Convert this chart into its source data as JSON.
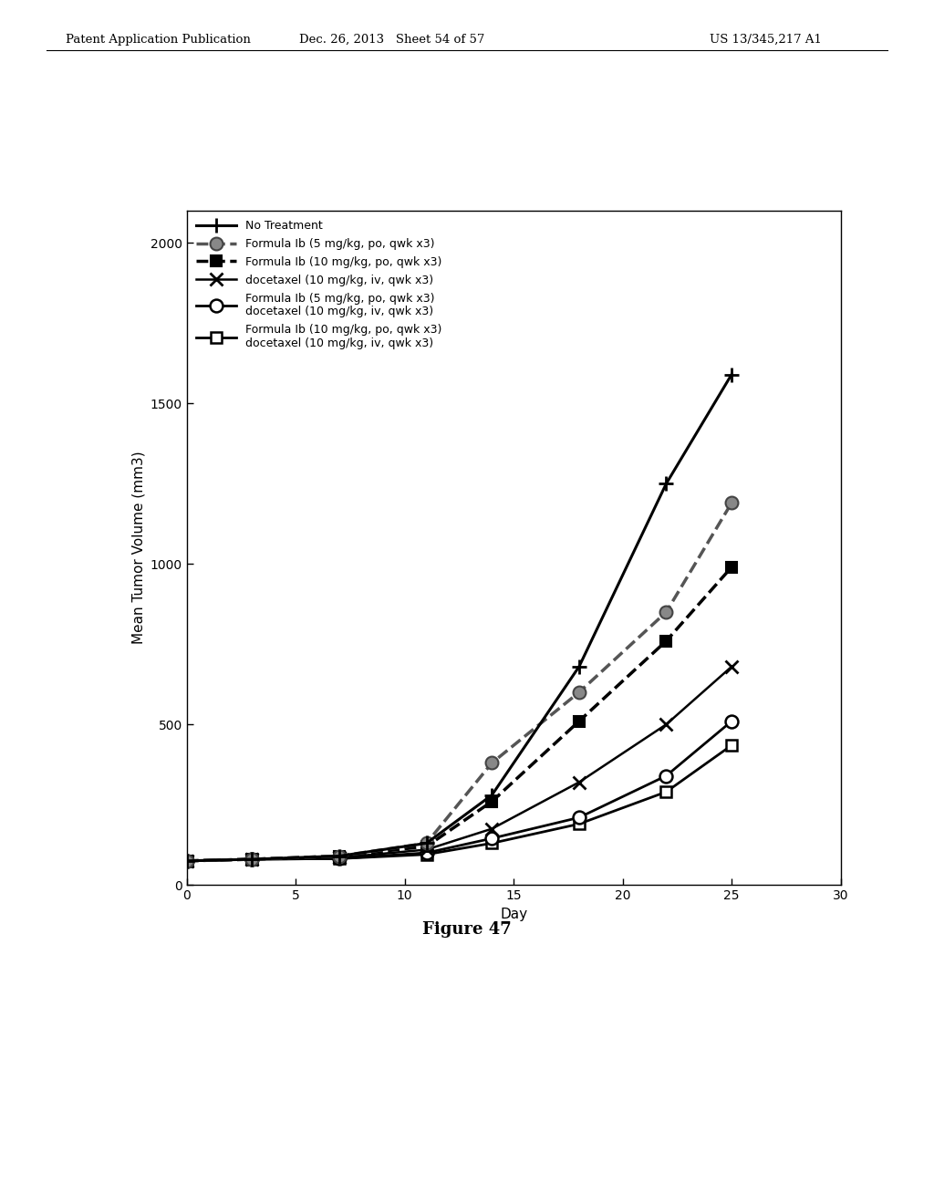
{
  "series": [
    {
      "label": "No Treatment",
      "x": [
        0,
        3,
        7,
        11,
        14,
        18,
        22,
        25
      ],
      "y": [
        75,
        80,
        90,
        130,
        280,
        680,
        1250,
        1590
      ],
      "color": "#000000",
      "linestyle": "solid",
      "linewidth": 2.2,
      "marker": "+",
      "markersize": 11,
      "markerfacecolor": "white",
      "markeredgecolor": "#000000",
      "markeredgewidth": 2.0
    },
    {
      "label": "Formula Ib (5 mg/kg, po, qwk x3)",
      "x": [
        0,
        3,
        7,
        11,
        14,
        18,
        22,
        25
      ],
      "y": [
        75,
        80,
        90,
        130,
        380,
        600,
        850,
        1190
      ],
      "color": "#555555",
      "linestyle": "dashed",
      "linewidth": 2.5,
      "marker": "o",
      "markersize": 10,
      "markerfacecolor": "#888888",
      "markeredgecolor": "#444444",
      "markeredgewidth": 1.5
    },
    {
      "label": "Formula Ib (10 mg/kg, po, qwk x3)",
      "x": [
        0,
        3,
        7,
        11,
        14,
        18,
        22,
        25
      ],
      "y": [
        75,
        80,
        90,
        120,
        260,
        510,
        760,
        990
      ],
      "color": "#000000",
      "linestyle": "dashed",
      "linewidth": 2.5,
      "marker": "s",
      "markersize": 9,
      "markerfacecolor": "#000000",
      "markeredgecolor": "#000000",
      "markeredgewidth": 1.5
    },
    {
      "label": "docetaxel (10 mg/kg, iv, qwk x3)",
      "x": [
        0,
        3,
        7,
        11,
        14,
        18,
        22,
        25
      ],
      "y": [
        75,
        80,
        85,
        110,
        175,
        320,
        500,
        680
      ],
      "color": "#000000",
      "linestyle": "solid",
      "linewidth": 1.8,
      "marker": "x",
      "markersize": 10,
      "markerfacecolor": "#000000",
      "markeredgecolor": "#000000",
      "markeredgewidth": 2.0
    },
    {
      "label_line1": "Formula Ib (5 mg/kg, po, qwk x3)",
      "label_line2": "docetaxel (10 mg/kg, iv, qwk x3)",
      "x": [
        0,
        3,
        7,
        11,
        14,
        18,
        22,
        25
      ],
      "y": [
        75,
        80,
        82,
        100,
        145,
        210,
        340,
        510
      ],
      "color": "#000000",
      "linestyle": "solid",
      "linewidth": 2.0,
      "marker": "o",
      "markersize": 10,
      "markerfacecolor": "white",
      "markeredgecolor": "#000000",
      "markeredgewidth": 1.8
    },
    {
      "label_line1": "Formula Ib (10 mg/kg, po, qwk x3)",
      "label_line2": "docetaxel (10 mg/kg, iv, qwk x3)",
      "x": [
        0,
        3,
        7,
        11,
        14,
        18,
        22,
        25
      ],
      "y": [
        75,
        80,
        82,
        95,
        130,
        190,
        290,
        435
      ],
      "color": "#000000",
      "linestyle": "solid",
      "linewidth": 2.0,
      "marker": "s",
      "markersize": 9,
      "markerfacecolor": "white",
      "markeredgecolor": "#000000",
      "markeredgewidth": 1.8
    }
  ],
  "xlabel": "Day",
  "ylabel": "Mean Tumor Volume (mm3)",
  "xlim": [
    0,
    30
  ],
  "ylim": [
    0,
    2100
  ],
  "yticks": [
    0,
    500,
    1000,
    1500,
    2000
  ],
  "xticks": [
    0,
    5,
    10,
    15,
    20,
    25,
    30
  ],
  "figure_caption": "Figure 47",
  "header_left": "Patent Application Publication",
  "header_center": "Dec. 26, 2013   Sheet 54 of 57",
  "header_right": "US 13/345,217 A1",
  "background_color": "#ffffff",
  "font_size": 11,
  "legend_items": [
    {
      "label": "No Treatment",
      "linestyle": "solid",
      "linewidth": 2.2,
      "marker": "+",
      "markersize": 11,
      "color": "#000000",
      "mfc": "white",
      "mec": "#000000",
      "mew": 2.0
    },
    {
      "label": "Formula Ib (5 mg/kg, po, qwk x3)",
      "linestyle": "dashed",
      "linewidth": 2.5,
      "marker": "o",
      "markersize": 10,
      "color": "#555555",
      "mfc": "#888888",
      "mec": "#444444",
      "mew": 1.5
    },
    {
      "label": "Formula Ib (10 mg/kg, po, qwk x3)",
      "linestyle": "dashed",
      "linewidth": 2.5,
      "marker": "s",
      "markersize": 9,
      "color": "#000000",
      "mfc": "#000000",
      "mec": "#000000",
      "mew": 1.5
    },
    {
      "label": "docetaxel (10 mg/kg, iv, qwk x3)",
      "linestyle": "solid",
      "linewidth": 1.8,
      "marker": "x",
      "markersize": 10,
      "color": "#000000",
      "mfc": "#000000",
      "mec": "#000000",
      "mew": 2.0
    },
    {
      "label": "Formula Ib (5 mg/kg, po, qwk x3)\ndocetaxel (10 mg/kg, iv, qwk x3)",
      "linestyle": "solid",
      "linewidth": 2.0,
      "marker": "o",
      "markersize": 10,
      "color": "#000000",
      "mfc": "white",
      "mec": "#000000",
      "mew": 1.8
    },
    {
      "label": "Formula Ib (10 mg/kg, po, qwk x3)\ndocetaxel (10 mg/kg, iv, qwk x3)",
      "linestyle": "solid",
      "linewidth": 2.0,
      "marker": "s",
      "markersize": 9,
      "color": "#000000",
      "mfc": "white",
      "mec": "#000000",
      "mew": 1.8
    }
  ]
}
